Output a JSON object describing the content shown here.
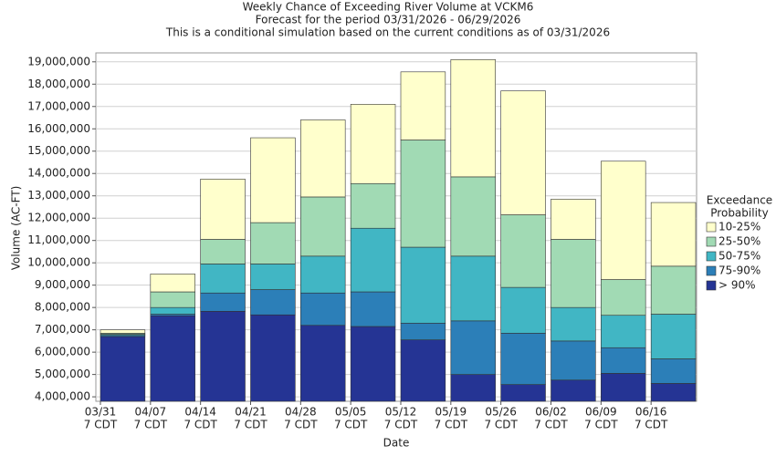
{
  "chart_data": {
    "type": "bar",
    "title": "Weekly Chance of Exceeding River Volume at VCKM6",
    "subtitle": [
      "Forecast for the period 03/31/2026 - 06/29/2026",
      "This is a conditional simulation based on the current conditions as of 03/31/2026"
    ],
    "x_label": "Date",
    "y_label": "Volume (AC-FT)",
    "categories": [
      "03/31",
      "04/07",
      "04/14",
      "04/21",
      "04/28",
      "05/05",
      "05/12",
      "05/19",
      "05/26",
      "06/02",
      "06/09",
      "06/16"
    ],
    "category_sublabel": "7 CDT",
    "legend_title": [
      "Exceedance",
      "Probability"
    ],
    "series": [
      {
        "name": "> 90%",
        "color": "#253494",
        "values": [
          6700000,
          7630000,
          7830000,
          7670000,
          7200000,
          7150000,
          6550000,
          5000000,
          4550000,
          4750000,
          5050000,
          4600000
        ]
      },
      {
        "name": "75-90%",
        "color": "#2c7fb8",
        "values": [
          6750000,
          7700000,
          8650000,
          8800000,
          8650000,
          8700000,
          7300000,
          7400000,
          6850000,
          6500000,
          6200000,
          5700000
        ]
      },
      {
        "name": "50-75%",
        "color": "#41b6c4",
        "values": [
          6800000,
          8000000,
          9950000,
          9950000,
          10300000,
          11550000,
          10700000,
          10300000,
          8900000,
          8000000,
          7650000,
          7700000
        ]
      },
      {
        "name": "25-50%",
        "color": "#a1dab4",
        "values": [
          6850000,
          8700000,
          11050000,
          11800000,
          12950000,
          13550000,
          15500000,
          13850000,
          12150000,
          11050000,
          9250000,
          9850000
        ]
      },
      {
        "name": "10-25%",
        "color": "#ffffcc",
        "values": [
          7000000,
          9500000,
          13750000,
          15600000,
          16400000,
          17100000,
          18550000,
          19100000,
          17700000,
          12850000,
          14550000,
          12700000
        ]
      }
    ],
    "ylim": [
      3800000,
      19400000
    ],
    "yticks": [
      {
        "value": 4000000,
        "label": "4,000,000"
      },
      {
        "value": 5000000,
        "label": "5,000,000"
      },
      {
        "value": 6000000,
        "label": "6,000,000"
      },
      {
        "value": 7000000,
        "label": "7,000,000"
      },
      {
        "value": 8000000,
        "label": "8,000,000"
      },
      {
        "value": 9000000,
        "label": "9,000,000"
      },
      {
        "value": 10000000,
        "label": "10,000,000"
      },
      {
        "value": 11000000,
        "label": "11,000,000"
      },
      {
        "value": 12000000,
        "label": "12,000,000"
      },
      {
        "value": 13000000,
        "label": "13,000,000"
      },
      {
        "value": 14000000,
        "label": "14,000,000"
      },
      {
        "value": 15000000,
        "label": "15,000,000"
      },
      {
        "value": 16000000,
        "label": "16,000,000"
      },
      {
        "value": 17000000,
        "label": "17,000,000"
      },
      {
        "value": 18000000,
        "label": "18,000,000"
      },
      {
        "value": 19000000,
        "label": "19,000,000"
      }
    ],
    "grid": true
  }
}
